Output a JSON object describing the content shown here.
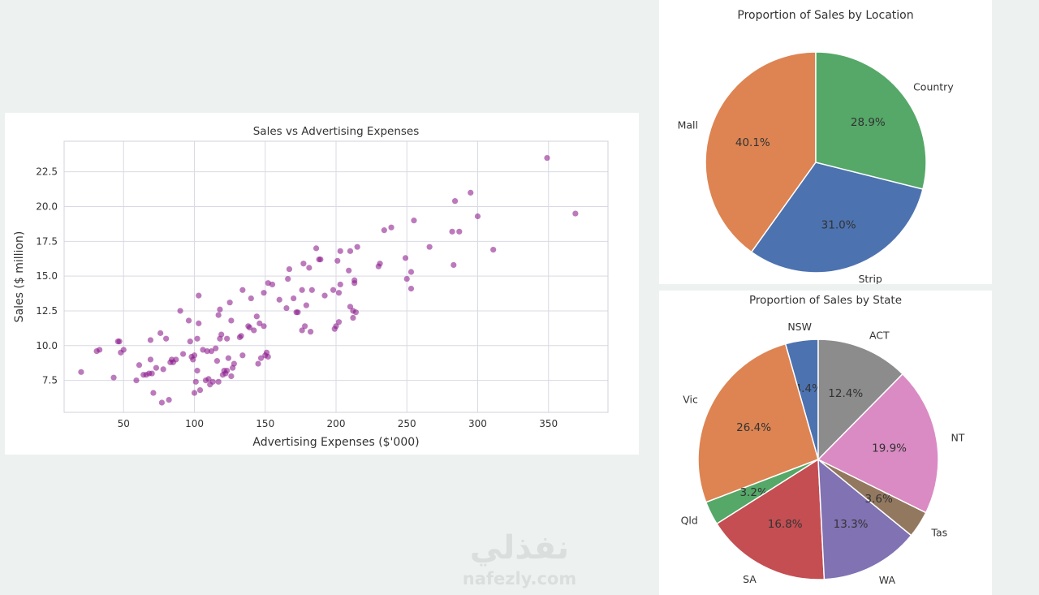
{
  "chart_data": [
    {
      "type": "scatter",
      "title": "Sales vs Advertising Expenses",
      "xlabel": "Advertising Expenses ($'000)",
      "ylabel": "Sales ($ million)",
      "xlim": [
        8,
        392
      ],
      "ylim": [
        5.2,
        24.7
      ],
      "xticks": [
        50,
        100,
        150,
        200,
        250,
        300,
        350
      ],
      "yticks": [
        7.5,
        10.0,
        12.5,
        15.0,
        17.5,
        20.0,
        22.5
      ],
      "xtick_labels": [
        "50",
        "100",
        "150",
        "200",
        "250",
        "300",
        "350"
      ],
      "ytick_labels": [
        "7.5",
        "10.0",
        "12.5",
        "15.0",
        "17.5",
        "20.0",
        "22.5"
      ],
      "grid": true,
      "color": "#8b1a8b",
      "points": [
        [
          20,
          8.1
        ],
        [
          31,
          9.6
        ],
        [
          33,
          9.7
        ],
        [
          43,
          7.7
        ],
        [
          46,
          10.3
        ],
        [
          47,
          10.3
        ],
        [
          48,
          9.5
        ],
        [
          50,
          9.7
        ],
        [
          59,
          7.5
        ],
        [
          61,
          8.6
        ],
        [
          64,
          7.9
        ],
        [
          66,
          7.9
        ],
        [
          68,
          8.0
        ],
        [
          69,
          10.4
        ],
        [
          69,
          9.0
        ],
        [
          70,
          8.0
        ],
        [
          71,
          6.6
        ],
        [
          73,
          8.4
        ],
        [
          76,
          10.9
        ],
        [
          77,
          5.9
        ],
        [
          78,
          8.3
        ],
        [
          80,
          10.5
        ],
        [
          82,
          6.1
        ],
        [
          83,
          8.8
        ],
        [
          84,
          9.0
        ],
        [
          85,
          8.8
        ],
        [
          87,
          9.0
        ],
        [
          90,
          12.5
        ],
        [
          92,
          9.4
        ],
        [
          96,
          11.8
        ],
        [
          97,
          10.3
        ],
        [
          98,
          9.2
        ],
        [
          99,
          9.0
        ],
        [
          100,
          9.3
        ],
        [
          100,
          6.6
        ],
        [
          101,
          7.4
        ],
        [
          102,
          10.5
        ],
        [
          102,
          8.2
        ],
        [
          103,
          11.6
        ],
        [
          103,
          13.6
        ],
        [
          104,
          6.8
        ],
        [
          106,
          9.7
        ],
        [
          108,
          7.5
        ],
        [
          109,
          9.6
        ],
        [
          110,
          7.6
        ],
        [
          111,
          7.2
        ],
        [
          112,
          9.6
        ],
        [
          113,
          7.4
        ],
        [
          115,
          9.8
        ],
        [
          116,
          8.9
        ],
        [
          117,
          7.4
        ],
        [
          117,
          12.2
        ],
        [
          118,
          12.6
        ],
        [
          118,
          10.5
        ],
        [
          119,
          10.8
        ],
        [
          120,
          7.9
        ],
        [
          121,
          8.2
        ],
        [
          122,
          8.0
        ],
        [
          123,
          8.2
        ],
        [
          123,
          10.5
        ],
        [
          124,
          9.1
        ],
        [
          125,
          13.1
        ],
        [
          126,
          11.8
        ],
        [
          126,
          7.8
        ],
        [
          127,
          8.4
        ],
        [
          128,
          8.7
        ],
        [
          132,
          10.6
        ],
        [
          133,
          10.7
        ],
        [
          134,
          14.0
        ],
        [
          134,
          9.3
        ],
        [
          138,
          11.4
        ],
        [
          139,
          11.3
        ],
        [
          140,
          13.4
        ],
        [
          142,
          11.1
        ],
        [
          144,
          12.1
        ],
        [
          145,
          8.7
        ],
        [
          146,
          11.6
        ],
        [
          147,
          9.1
        ],
        [
          149,
          11.4
        ],
        [
          149,
          13.8
        ],
        [
          150,
          9.3
        ],
        [
          151,
          9.5
        ],
        [
          152,
          9.2
        ],
        [
          152,
          14.5
        ],
        [
          155,
          14.4
        ],
        [
          160,
          13.3
        ],
        [
          165,
          12.7
        ],
        [
          166,
          14.8
        ],
        [
          167,
          15.5
        ],
        [
          170,
          13.4
        ],
        [
          172,
          12.4
        ],
        [
          173,
          12.4
        ],
        [
          176,
          14.0
        ],
        [
          176,
          11.1
        ],
        [
          177,
          15.9
        ],
        [
          178,
          11.4
        ],
        [
          179,
          12.9
        ],
        [
          181,
          15.6
        ],
        [
          182,
          11.0
        ],
        [
          183,
          14.0
        ],
        [
          186,
          17.0
        ],
        [
          188,
          16.2
        ],
        [
          189,
          16.2
        ],
        [
          192,
          13.6
        ],
        [
          198,
          14.0
        ],
        [
          199,
          11.2
        ],
        [
          200,
          11.4
        ],
        [
          201,
          16.1
        ],
        [
          202,
          13.8
        ],
        [
          202,
          11.7
        ],
        [
          203,
          14.4
        ],
        [
          203,
          16.8
        ],
        [
          209,
          15.4
        ],
        [
          210,
          16.8
        ],
        [
          210,
          12.8
        ],
        [
          212,
          12.0
        ],
        [
          212,
          12.5
        ],
        [
          213,
          14.7
        ],
        [
          213,
          14.5
        ],
        [
          214,
          12.4
        ],
        [
          215,
          17.1
        ],
        [
          230,
          15.7
        ],
        [
          231,
          15.9
        ],
        [
          234,
          18.3
        ],
        [
          239,
          18.5
        ],
        [
          249,
          16.3
        ],
        [
          250,
          14.8
        ],
        [
          253,
          14.1
        ],
        [
          253,
          15.3
        ],
        [
          255,
          19.0
        ],
        [
          266,
          17.1
        ],
        [
          282,
          18.2
        ],
        [
          283,
          15.8
        ],
        [
          284,
          20.4
        ],
        [
          287,
          18.2
        ],
        [
          295,
          21.0
        ],
        [
          300,
          19.3
        ],
        [
          311,
          16.9
        ],
        [
          349,
          23.5
        ],
        [
          369,
          19.5
        ]
      ]
    },
    {
      "type": "pie",
      "title": "Proportion of Sales by Location",
      "startangle": 90,
      "slices": [
        {
          "label": "Mall",
          "value": 40.1,
          "pct_label": "40.1%",
          "color": "#dd8452"
        },
        {
          "label": "Strip",
          "value": 31.0,
          "pct_label": "31.0%",
          "color": "#4c72b0"
        },
        {
          "label": "Country",
          "value": 28.9,
          "pct_label": "28.9%",
          "color": "#55a868"
        }
      ]
    },
    {
      "type": "pie",
      "title": "Proportion of Sales by State",
      "startangle": 90,
      "slices": [
        {
          "label": "NSW",
          "value": 4.4,
          "pct_label": "4.4%",
          "color": "#4c72b0"
        },
        {
          "label": "Vic",
          "value": 26.4,
          "pct_label": "26.4%",
          "color": "#dd8452"
        },
        {
          "label": "Qld",
          "value": 3.2,
          "pct_label": "3.2%",
          "color": "#55a868"
        },
        {
          "label": "SA",
          "value": 16.8,
          "pct_label": "16.8%",
          "color": "#c44e52"
        },
        {
          "label": "WA",
          "value": 13.3,
          "pct_label": "13.3%",
          "color": "#8172b3"
        },
        {
          "label": "Tas",
          "value": 3.6,
          "pct_label": "3.6%",
          "color": "#937860"
        },
        {
          "label": "NT",
          "value": 19.9,
          "pct_label": "19.9%",
          "color": "#da8bc3"
        },
        {
          "label": "ACT",
          "value": 12.4,
          "pct_label": "12.4%",
          "color": "#8c8c8c"
        }
      ]
    }
  ],
  "watermark": {
    "text_arabic": "نفذلي",
    "text_latin": "nafezly.com"
  }
}
